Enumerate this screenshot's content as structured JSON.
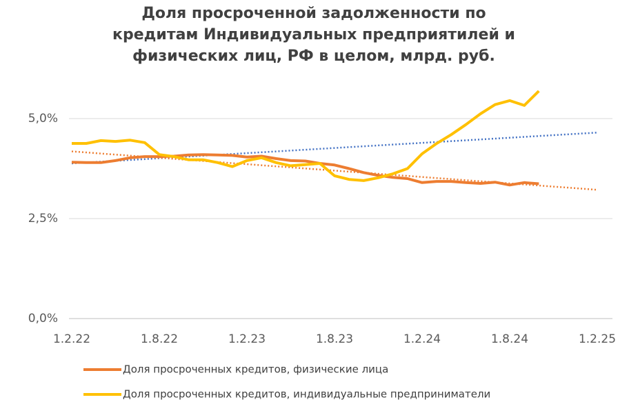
{
  "chart_data": {
    "type": "line",
    "title": [
      "Доля просроченной задолженности по",
      "кредитам Индивидуальных предприятилей и",
      "физических лиц, РФ в целом, млрд. руб."
    ],
    "categories": [
      "1.2.22",
      null,
      null,
      null,
      null,
      null,
      "1.8.22",
      null,
      null,
      null,
      null,
      null,
      "1.2.23",
      null,
      null,
      null,
      null,
      null,
      "1.8.23",
      null,
      null,
      null,
      null,
      null,
      "1.2.24",
      null,
      null,
      null,
      null,
      null,
      "1.8.24",
      null,
      null,
      null,
      null,
      null,
      "1.2.25"
    ],
    "series": [
      {
        "name": "Доля просроченных кредитов, физические лица",
        "color": "#ed7d31",
        "values": [
          3.91,
          3.9,
          3.9,
          3.95,
          4.02,
          4.05,
          4.05,
          4.06,
          4.09,
          4.1,
          4.09,
          4.08,
          4.04,
          4.06,
          4.0,
          3.95,
          3.94,
          3.88,
          3.84,
          3.75,
          3.65,
          3.58,
          3.53,
          3.5,
          3.4,
          3.43,
          3.43,
          3.4,
          3.38,
          3.41,
          3.34,
          3.4,
          3.37,
          null,
          null,
          null,
          null
        ]
      },
      {
        "name": "Доля просроченных кредитов, индивидуальные предприниматели",
        "color": "#ffc000",
        "values": [
          4.38,
          4.38,
          4.45,
          4.43,
          4.46,
          4.4,
          4.1,
          4.05,
          3.97,
          3.97,
          3.9,
          3.8,
          3.95,
          4.02,
          3.9,
          3.82,
          3.85,
          3.88,
          3.57,
          3.48,
          3.45,
          3.52,
          3.62,
          3.75,
          4.12,
          4.38,
          4.6,
          4.85,
          5.12,
          5.35,
          5.45,
          5.33,
          5.69,
          null,
          null,
          null,
          null
        ]
      }
    ],
    "trendlines": [
      {
        "color": "#4472c4",
        "start": 3.88,
        "end": 4.65
      },
      {
        "color": "#ed7d31",
        "start": 4.18,
        "end": 3.22
      }
    ],
    "ylim": [
      0,
      6
    ],
    "yticks": [
      {
        "value": 0,
        "label": "0,0%"
      },
      {
        "value": 2.5,
        "label": "2,5%"
      },
      {
        "value": 5,
        "label": "5,0%"
      }
    ],
    "grid": true
  }
}
